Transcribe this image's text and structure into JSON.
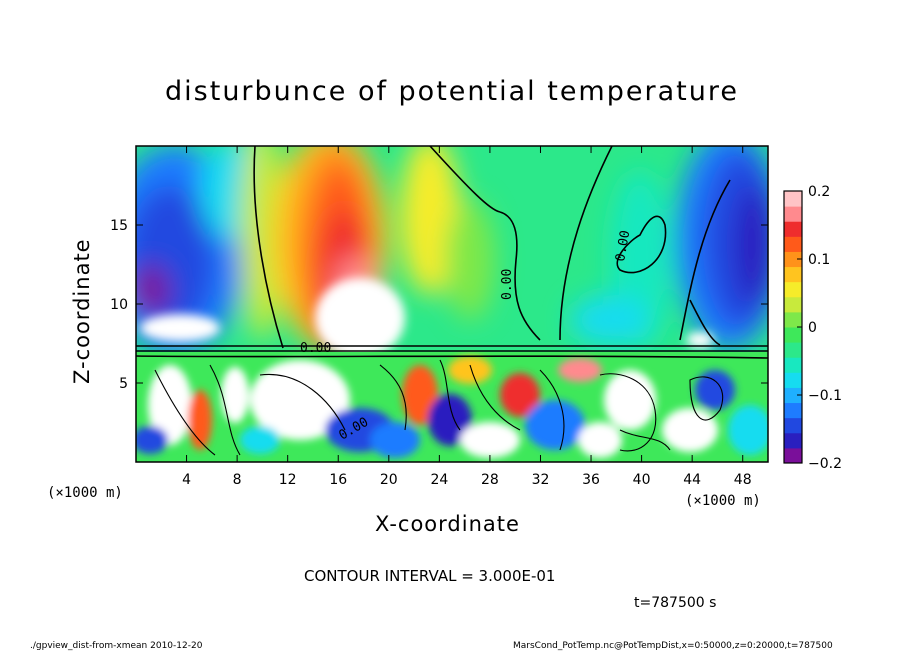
{
  "chart_data": {
    "type": "heatmap",
    "title": "disturbunce of potential temperature",
    "xlabel": "X-coordinate",
    "ylabel": "Z-coordinate",
    "x_unit": "(×1000 m)",
    "y_unit": "(×1000 m)",
    "xlim": [
      0,
      50
    ],
    "ylim": [
      0,
      20
    ],
    "x_ticks": [
      4,
      8,
      12,
      16,
      20,
      24,
      28,
      32,
      36,
      40,
      44,
      48
    ],
    "y_ticks": [
      5,
      10,
      15
    ],
    "colorbar": {
      "range": [
        -0.2,
        0.2
      ],
      "tick_labels": [
        "0.2",
        "0.1",
        "0",
        "−0.1",
        "−0.2"
      ],
      "tick_values": [
        0.2,
        0.1,
        0,
        -0.1,
        -0.2
      ],
      "colors": [
        "#7a0f9a",
        "#2a1fbf",
        "#2148e0",
        "#1e7cff",
        "#1fb0ff",
        "#16dcf0",
        "#18e8c0",
        "#2ce88a",
        "#3ee85a",
        "#7ee84a",
        "#c8ea3c",
        "#f6ec2a",
        "#ffc41f",
        "#ff921a",
        "#ff5a1a",
        "#ef2d2d",
        "#ff8a8e",
        "#ffc4c6"
      ]
    },
    "contour_labels": [
      "0.00",
      "0.00",
      "0.00",
      "0.00"
    ],
    "contour_interval": "CONTOUR INTERVAL = 3.000E-01",
    "time": "t=787500 s"
  },
  "footer": {
    "left": "./gpview_dist-from-xmean  2010-12-20",
    "right": "MarsCond_PotTemp.nc@PotTempDist,x=0:50000,z=0:20000,t=787500"
  }
}
